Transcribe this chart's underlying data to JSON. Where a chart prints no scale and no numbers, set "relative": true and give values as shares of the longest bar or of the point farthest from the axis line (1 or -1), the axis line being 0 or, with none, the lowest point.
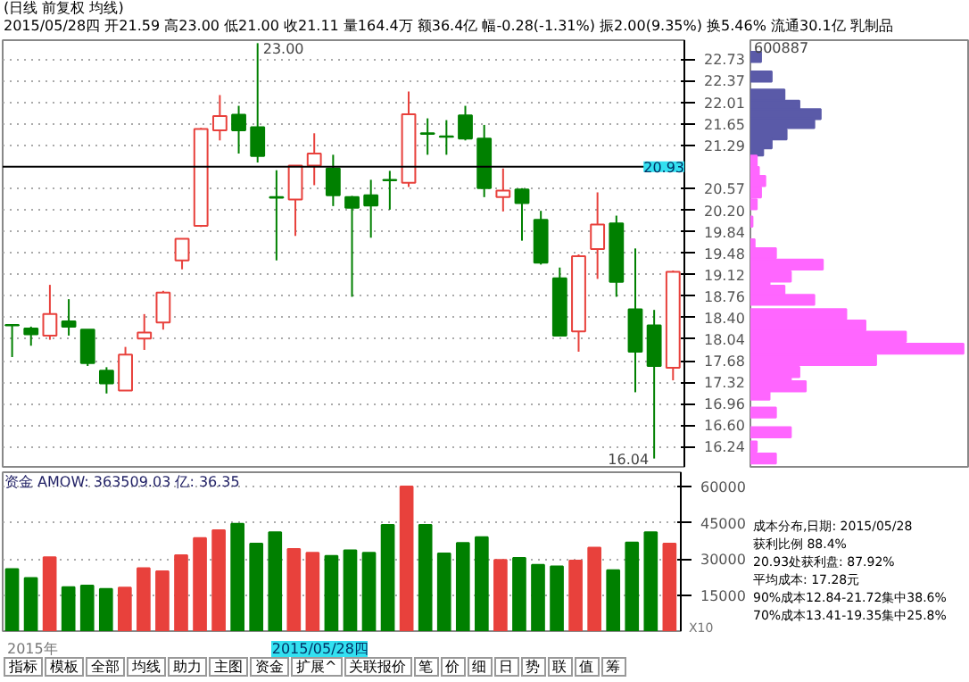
{
  "chart_data": [
    {
      "type": "candlestick",
      "title": "(日线 前复权 均线)",
      "subtitle": "2015/05/28四 开21.59 高23.00 低21.00 收21.11 量164.4万 额36.4亿 幅-0.28(-1.31%) 振2.00(9.35%) 换5.46% 流通30.1亿 乳制品",
      "categories": [
        null,
        null,
        null,
        null,
        null,
        null,
        null,
        null,
        null,
        null,
        null,
        null,
        null,
        null,
        null,
        null,
        null,
        null,
        null,
        null,
        null,
        null,
        null,
        null,
        null,
        null,
        null,
        null,
        null,
        null,
        null,
        null,
        null,
        null,
        null,
        null
      ],
      "ohlc": [
        [
          18.28,
          18.29,
          17.74,
          18.27
        ],
        [
          18.22,
          18.25,
          17.93,
          18.12
        ],
        [
          18.1,
          18.95,
          18.03,
          18.46
        ],
        [
          18.34,
          18.71,
          18.1,
          18.25
        ],
        [
          18.2,
          18.2,
          17.59,
          17.64
        ],
        [
          17.51,
          17.57,
          17.13,
          17.3
        ],
        [
          17.18,
          17.91,
          17.18,
          17.78
        ],
        [
          18.05,
          18.46,
          17.86,
          18.15
        ],
        [
          18.32,
          18.85,
          18.2,
          18.82
        ],
        [
          19.36,
          19.72,
          19.21,
          19.72
        ],
        [
          19.94,
          21.58,
          19.92,
          21.56
        ],
        [
          21.54,
          22.13,
          21.37,
          21.78
        ],
        [
          21.8,
          21.95,
          21.15,
          21.54
        ],
        [
          21.59,
          23.0,
          21.0,
          21.11
        ],
        [
          20.42,
          20.87,
          19.36,
          20.41
        ],
        [
          20.38,
          20.95,
          19.77,
          20.95
        ],
        [
          20.95,
          21.49,
          20.62,
          21.15
        ],
        [
          20.9,
          21.13,
          20.27,
          20.45
        ],
        [
          20.42,
          20.44,
          18.75,
          20.24
        ],
        [
          20.45,
          20.71,
          19.74,
          20.28
        ],
        [
          20.71,
          20.86,
          20.21,
          20.7
        ],
        [
          20.66,
          22.19,
          20.59,
          21.81
        ],
        [
          21.49,
          21.74,
          21.13,
          21.48
        ],
        [
          21.44,
          21.71,
          21.13,
          21.43
        ],
        [
          21.79,
          21.95,
          21.37,
          21.4
        ],
        [
          21.4,
          21.63,
          20.42,
          20.57
        ],
        [
          20.42,
          20.9,
          20.18,
          20.53
        ],
        [
          20.55,
          20.57,
          19.69,
          20.32
        ],
        [
          20.04,
          20.19,
          19.29,
          19.32
        ],
        [
          19.06,
          19.24,
          18.1,
          18.1
        ],
        [
          18.17,
          19.46,
          17.83,
          19.43
        ],
        [
          19.55,
          20.5,
          19.05,
          19.96
        ],
        [
          19.98,
          20.11,
          18.75,
          19.0
        ],
        [
          18.54,
          19.56,
          17.15,
          17.83
        ],
        [
          18.27,
          18.53,
          16.04,
          17.59
        ],
        [
          17.56,
          19.19,
          17.35,
          19.17
        ]
      ],
      "colors": [
        "#008000",
        "#008000",
        "#e8413c",
        "#008000",
        "#008000",
        "#008000",
        "#e8413c",
        "#e8413c",
        "#e8413c",
        "#e8413c",
        "#e8413c",
        "#e8413c",
        "#008000",
        "#008000",
        "#008000",
        "#e8413c",
        "#e8413c",
        "#008000",
        "#008000",
        "#008000",
        "#008000",
        "#e8413c",
        "#008000",
        "#008000",
        "#008000",
        "#008000",
        "#e8413c",
        "#008000",
        "#008000",
        "#008000",
        "#e8413c",
        "#e8413c",
        "#008000",
        "#008000",
        "#008000",
        "#e8413c"
      ],
      "ylim": [
        15.9,
        23.05
      ],
      "yticks": [
        22.73,
        22.37,
        22.01,
        21.65,
        21.29,
        20.57,
        {
          "value": 20.2,
          "label": "20.20"
        },
        19.84,
        19.48,
        19.12,
        18.76,
        {
          "value": 18.4,
          "label": "18.40"
        },
        18.04,
        17.68,
        17.32,
        16.96,
        {
          "value": 16.6,
          "label": "16.60"
        },
        16.24
      ],
      "grid": "y",
      "tick_labels": "y",
      "ref_lines": [
        {
          "axis": "y",
          "value": 20.93,
          "label": "20.93",
          "color": "#000000"
        }
      ],
      "annotations": [
        "23.00",
        "16.04"
      ]
    },
    {
      "type": "bar",
      "title": "资金 AMOW: 363509.03 亿: 36.35",
      "categories": [
        null,
        null,
        null,
        null,
        null,
        null,
        null,
        null,
        null,
        null,
        null,
        null,
        null,
        null,
        null,
        null,
        null,
        null,
        null,
        null,
        null,
        null,
        null,
        null,
        null,
        null,
        null,
        null,
        null,
        null,
        null,
        null,
        null,
        null,
        null,
        null
      ],
      "values": [
        25800,
        22100,
        30700,
        18300,
        18900,
        17500,
        18100,
        26100,
        24800,
        31500,
        38700,
        41900,
        44600,
        36300,
        41100,
        34100,
        32500,
        31200,
        33600,
        32500,
        44100,
        60100,
        44100,
        32300,
        36600,
        39000,
        29600,
        30400,
        27500,
        26900,
        29300,
        34700,
        25300,
        36800,
        41100,
        36300
      ],
      "colors": [
        "#008000",
        "#008000",
        "#e8413c",
        "#008000",
        "#008000",
        "#008000",
        "#e8413c",
        "#e8413c",
        "#e8413c",
        "#e8413c",
        "#e8413c",
        "#e8413c",
        "#008000",
        "#008000",
        "#008000",
        "#e8413c",
        "#e8413c",
        "#008000",
        "#008000",
        "#008000",
        "#008000",
        "#e8413c",
        "#008000",
        "#008000",
        "#008000",
        "#008000",
        "#e8413c",
        "#008000",
        "#008000",
        "#008000",
        "#e8413c",
        "#e8413c",
        "#008000",
        "#008000",
        "#008000",
        "#e8413c"
      ],
      "ylim": [
        0,
        66000
      ],
      "yticks": [
        15000,
        30000,
        45000,
        60000
      ],
      "grid": "y",
      "tick_labels": "y",
      "annotations": [
        "X10",
        "2015年",
        "2015/05/28四"
      ]
    },
    {
      "type": "bar",
      "orientation": "horizontal",
      "relative": true,
      "ylim": [
        15.9,
        23.05
      ],
      "tick_labels": false,
      "series": [
        {
          "color": "#5a5aa8",
          "x": [
            22.77,
            22.44,
            22.14,
            21.95,
            21.81,
            21.66,
            21.47,
            21.32,
            21.2
          ],
          "values": [
            0.05,
            0.1,
            0.16,
            0.23,
            0.33,
            0.3,
            0.17,
            0.1,
            0.06
          ]
        },
        {
          "color": "#ff66ff",
          "x": [
            21.03,
            20.84,
            20.69,
            20.5,
            20.3,
            20.01,
            19.63,
            19.48,
            19.29,
            19.09,
            18.95,
            18.85,
            18.7,
            18.46,
            18.27,
            18.08,
            17.88,
            17.69,
            17.49,
            17.35,
            17.25,
            17.11,
            16.81,
            16.48,
            16.24,
            16.04
          ],
          "values": [
            0.03,
            0.04,
            0.07,
            0.05,
            0.03,
            0.01,
            0.02,
            0.12,
            0.34,
            0.19,
            0.09,
            0.16,
            0.3,
            0.45,
            0.54,
            0.73,
            1.0,
            0.59,
            0.23,
            0.19,
            0.26,
            0.09,
            0.12,
            0.19,
            0.03,
            0.12
          ]
        }
      ],
      "annotations": [
        "600887",
        "成本分布,日期: 2015/05/28",
        "获利比例 88.4%",
        "20.93处获利盘: 87.92%",
        "平均成本: 17.28元",
        "90%成本12.84-21.72集中38.6%",
        "70%成本13.41-19.35集中25.8%"
      ]
    },
    {
      "type": "other",
      "annotations": [
        "指标",
        "模板",
        "全部",
        "均线",
        "助力",
        "主图",
        "资金",
        "扩展^",
        "关联报价",
        "笔",
        "价",
        "细",
        "日",
        "势",
        "联",
        "值",
        "筹"
      ]
    }
  ]
}
